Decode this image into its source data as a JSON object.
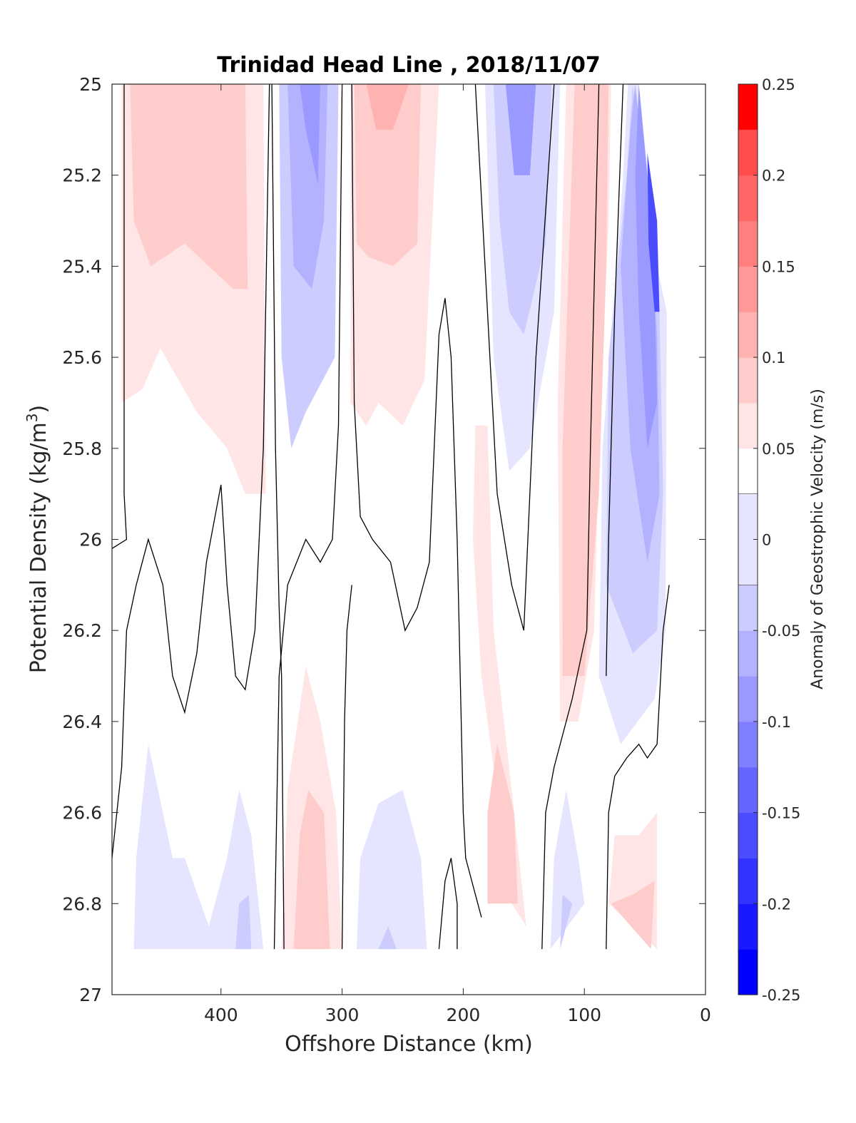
{
  "chart_data": {
    "type": "heatmap",
    "title": "Trinidad Head Line , 2018/11/07",
    "xlabel": "Offshore Distance (km)",
    "ylabel_main": "Potential Density (kg/m",
    "ylabel_sup": "3",
    "ylabel_close": ")",
    "colorbar_label": "Anomaly of Geostrophic Velocity (m/s)",
    "xlim": [
      490,
      0
    ],
    "ylim": [
      27,
      25
    ],
    "x_reversed": true,
    "y_reversed": true,
    "xticks": [
      400,
      300,
      200,
      100,
      0
    ],
    "yticks": [
      25,
      25.2,
      25.4,
      25.6,
      25.8,
      26,
      26.2,
      26.4,
      26.6,
      26.8,
      27
    ],
    "ytick_labels": [
      "25",
      "25.2",
      "25.4",
      "25.6",
      "25.8",
      "26",
      "26.2",
      "26.4",
      "26.6",
      "26.8",
      "27"
    ],
    "colorbar": {
      "min": -0.25,
      "max": 0.25,
      "ticks": [
        0.25,
        0.2,
        0.15,
        0.1,
        0.05,
        0,
        -0.05,
        -0.1,
        -0.15,
        -0.2,
        -0.25
      ],
      "tick_labels": [
        "0.25",
        "0.2",
        "0.15",
        "0.1",
        "0.05",
        "0",
        "-0.05",
        "-0.1",
        "-0.15",
        "-0.2",
        "-0.25"
      ],
      "levels": [
        -0.25,
        -0.225,
        -0.2,
        -0.175,
        -0.15,
        -0.125,
        -0.1,
        -0.075,
        -0.05,
        -0.025,
        0.025,
        0.05,
        0.075,
        0.1,
        0.125,
        0.15,
        0.175,
        0.2,
        0.225,
        0.25
      ],
      "colors": [
        "#0000ff",
        "#1919ff",
        "#3333ff",
        "#4c4cff",
        "#6666ff",
        "#7f7fff",
        "#9999ff",
        "#b2b2ff",
        "#ccccff",
        "#e5e5ff",
        "#ffffff",
        "#ffe5e5",
        "#ffcccc",
        "#ffb2b2",
        "#ff9999",
        "#ff7f7f",
        "#ff6666",
        "#ff4c4c",
        "#ff3333",
        "#ff1919"
      ]
    },
    "fills": [
      {
        "color": "#ffe5e5",
        "points": [
          [
            482,
            25
          ],
          [
            365,
            25
          ],
          [
            363,
            25.9
          ],
          [
            380,
            25.9
          ],
          [
            395,
            25.8
          ],
          [
            420,
            25.72
          ],
          [
            450,
            25.58
          ],
          [
            465,
            25.67
          ],
          [
            482,
            25.7
          ]
        ]
      },
      {
        "color": "#ffcccc",
        "points": [
          [
            475,
            25
          ],
          [
            380,
            25
          ],
          [
            378,
            25.45
          ],
          [
            390,
            25.45
          ],
          [
            430,
            25.35
          ],
          [
            458,
            25.4
          ],
          [
            472,
            25.3
          ]
        ]
      },
      {
        "color": "#ccccff",
        "points": [
          [
            352,
            25
          ],
          [
            303,
            25
          ],
          [
            306,
            25.6
          ],
          [
            330,
            25.72
          ],
          [
            342,
            25.8
          ],
          [
            350,
            25.6
          ]
        ]
      },
      {
        "color": "#b2b2ff",
        "points": [
          [
            345,
            25
          ],
          [
            312,
            25
          ],
          [
            315,
            25.3
          ],
          [
            325,
            25.45
          ],
          [
            340,
            25.4
          ]
        ]
      },
      {
        "color": "#9999ff",
        "points": [
          [
            335,
            25
          ],
          [
            318,
            25
          ],
          [
            320,
            25.22
          ],
          [
            330,
            25.1
          ]
        ]
      },
      {
        "color": "#ffe5e5",
        "points": [
          [
            293,
            25
          ],
          [
            220,
            25
          ],
          [
            232,
            25.65
          ],
          [
            250,
            25.75
          ],
          [
            270,
            25.7
          ],
          [
            280,
            25.75
          ],
          [
            293,
            25.7
          ]
        ]
      },
      {
        "color": "#ffcccc",
        "points": [
          [
            290,
            25
          ],
          [
            235,
            25
          ],
          [
            238,
            25.35
          ],
          [
            258,
            25.4
          ],
          [
            278,
            25.38
          ],
          [
            288,
            25.35
          ]
        ]
      },
      {
        "color": "#ffb2b2",
        "points": [
          [
            280,
            25
          ],
          [
            245,
            25
          ],
          [
            258,
            25.1
          ],
          [
            272,
            25.1
          ]
        ]
      },
      {
        "color": "#e5e5ff",
        "points": [
          [
            182,
            25
          ],
          [
            120,
            25
          ],
          [
            125,
            25.5
          ],
          [
            145,
            25.8
          ],
          [
            162,
            25.85
          ],
          [
            175,
            25.6
          ]
        ]
      },
      {
        "color": "#ccccff",
        "points": [
          [
            175,
            25
          ],
          [
            127,
            25
          ],
          [
            132,
            25.35
          ],
          [
            150,
            25.55
          ],
          [
            162,
            25.5
          ],
          [
            170,
            25.3
          ]
        ]
      },
      {
        "color": "#9999ff",
        "points": [
          [
            165,
            25
          ],
          [
            140,
            25
          ],
          [
            145,
            25.2
          ],
          [
            158,
            25.2
          ]
        ]
      },
      {
        "color": "#ffe5e5",
        "points": [
          [
            115,
            25
          ],
          [
            78,
            25
          ],
          [
            80,
            25.3
          ],
          [
            88,
            25.8
          ],
          [
            92,
            26.2
          ],
          [
            105,
            26.4
          ],
          [
            120,
            26.4
          ],
          [
            122,
            25.7
          ]
        ]
      },
      {
        "color": "#ffcccc",
        "points": [
          [
            108,
            25
          ],
          [
            80,
            25
          ],
          [
            82,
            25.4
          ],
          [
            88,
            25.9
          ],
          [
            100,
            26.3
          ],
          [
            118,
            26.3
          ],
          [
            118,
            25.8
          ]
        ]
      },
      {
        "color": "#ffe5e5",
        "points": [
          [
            190,
            25.75
          ],
          [
            180,
            25.75
          ],
          [
            175,
            26.2
          ],
          [
            160,
            26.55
          ],
          [
            148,
            26.85
          ],
          [
            160,
            26.8
          ],
          [
            185,
            26.3
          ],
          [
            192,
            26.0
          ]
        ]
      },
      {
        "color": "#e5e5ff",
        "points": [
          [
            64,
            25
          ],
          [
            55,
            25.0
          ],
          [
            40,
            25.4
          ],
          [
            32,
            25.5
          ],
          [
            33,
            26.2
          ],
          [
            42,
            26.35
          ],
          [
            70,
            26.45
          ],
          [
            88,
            26.3
          ],
          [
            85,
            25.8
          ],
          [
            68,
            25.2
          ]
        ]
      },
      {
        "color": "#ccccff",
        "points": [
          [
            60,
            25
          ],
          [
            52,
            25.2
          ],
          [
            38,
            25.5
          ],
          [
            35,
            25.9
          ],
          [
            40,
            26.2
          ],
          [
            60,
            26.25
          ],
          [
            82,
            26.1
          ],
          [
            80,
            25.6
          ],
          [
            65,
            25.2
          ]
        ]
      },
      {
        "color": "#b2b2ff",
        "points": [
          [
            58,
            25
          ],
          [
            50,
            25.2
          ],
          [
            40,
            25.55
          ],
          [
            38,
            25.9
          ],
          [
            48,
            26.05
          ],
          [
            62,
            25.8
          ],
          [
            70,
            25.4
          ],
          [
            62,
            25.1
          ]
        ]
      },
      {
        "color": "#9999ff",
        "points": [
          [
            55,
            25
          ],
          [
            48,
            25.2
          ],
          [
            42,
            25.45
          ],
          [
            40,
            25.7
          ],
          [
            48,
            25.8
          ],
          [
            55,
            25.5
          ],
          [
            58,
            25.2
          ]
        ]
      },
      {
        "color": "#4c4cff",
        "points": [
          [
            48,
            25.15
          ],
          [
            40,
            25.3
          ],
          [
            38,
            25.5
          ],
          [
            42,
            25.5
          ],
          [
            47,
            25.35
          ]
        ]
      },
      {
        "color": "#e5e5ff",
        "points": [
          [
            472,
            26.9
          ],
          [
            365,
            26.9
          ],
          [
            375,
            26.65
          ],
          [
            385,
            26.55
          ],
          [
            395,
            26.7
          ],
          [
            410,
            26.85
          ],
          [
            430,
            26.7
          ],
          [
            440,
            26.7
          ],
          [
            460,
            26.45
          ],
          [
            470,
            26.7
          ]
        ]
      },
      {
        "color": "#ccccff",
        "points": [
          [
            388,
            26.9
          ],
          [
            375,
            26.9
          ],
          [
            377,
            26.78
          ],
          [
            385,
            26.8
          ]
        ]
      },
      {
        "color": "#ffe5e5",
        "points": [
          [
            350,
            26.9
          ],
          [
            300,
            26.9
          ],
          [
            305,
            26.6
          ],
          [
            318,
            26.4
          ],
          [
            330,
            26.28
          ],
          [
            345,
            26.55
          ]
        ]
      },
      {
        "color": "#ffcccc",
        "points": [
          [
            340,
            26.9
          ],
          [
            310,
            26.9
          ],
          [
            315,
            26.6
          ],
          [
            328,
            26.55
          ],
          [
            335,
            26.65
          ]
        ]
      },
      {
        "color": "#e5e5ff",
        "points": [
          [
            288,
            26.9
          ],
          [
            230,
            26.9
          ],
          [
            235,
            26.7
          ],
          [
            250,
            26.55
          ],
          [
            270,
            26.58
          ],
          [
            285,
            26.7
          ]
        ]
      },
      {
        "color": "#ccccff",
        "points": [
          [
            270,
            26.9
          ],
          [
            255,
            26.9
          ],
          [
            262,
            26.85
          ]
        ]
      },
      {
        "color": "#ffcccc",
        "points": [
          [
            180,
            26.8
          ],
          [
            155,
            26.8
          ],
          [
            158,
            26.6
          ],
          [
            172,
            26.45
          ],
          [
            180,
            26.6
          ]
        ]
      },
      {
        "color": "#e5e5ff",
        "points": [
          [
            128,
            26.9
          ],
          [
            100,
            26.8
          ],
          [
            105,
            26.7
          ],
          [
            115,
            26.55
          ],
          [
            125,
            26.7
          ]
        ]
      },
      {
        "color": "#ccccff",
        "points": [
          [
            120,
            26.9
          ],
          [
            110,
            26.8
          ],
          [
            118,
            26.78
          ]
        ]
      },
      {
        "color": "#ffe5e5",
        "points": [
          [
            80,
            26.8
          ],
          [
            40,
            26.9
          ],
          [
            40,
            26.6
          ],
          [
            55,
            26.65
          ],
          [
            75,
            26.65
          ]
        ]
      },
      {
        "color": "#ffcccc",
        "points": [
          [
            78,
            26.8
          ],
          [
            45,
            26.9
          ],
          [
            42,
            26.75
          ],
          [
            60,
            26.78
          ]
        ]
      }
    ],
    "contours_zero": [
      [
        [
          480,
          25
        ],
        [
          480,
          25.9
        ],
        [
          478,
          26.0
        ],
        [
          490,
          26.02
        ]
      ],
      [
        [
          490,
          26.7
        ],
        [
          482,
          26.5
        ],
        [
          478,
          26.2
        ],
        [
          470,
          26.1
        ],
        [
          460,
          26.0
        ],
        [
          448,
          26.1
        ],
        [
          440,
          26.3
        ],
        [
          430,
          26.38
        ],
        [
          420,
          26.25
        ],
        [
          412,
          26.05
        ],
        [
          400,
          25.88
        ],
        [
          395,
          26.1
        ],
        [
          388,
          26.3
        ],
        [
          380,
          26.33
        ],
        [
          372,
          26.2
        ],
        [
          365,
          25.8
        ],
        [
          360,
          25.0
        ]
      ],
      [
        [
          358,
          25
        ],
        [
          355,
          25.8
        ],
        [
          352,
          26.15
        ],
        [
          350,
          26.3
        ],
        [
          348,
          26.9
        ]
      ],
      [
        [
          300,
          25
        ],
        [
          303,
          25.75
        ],
        [
          308,
          26.0
        ],
        [
          318,
          26.05
        ],
        [
          330,
          26.0
        ],
        [
          345,
          26.1
        ],
        [
          352,
          26.3
        ],
        [
          356,
          26.9
        ]
      ],
      [
        [
          292,
          25
        ],
        [
          290,
          25.7
        ],
        [
          285,
          25.95
        ],
        [
          275,
          26.0
        ],
        [
          260,
          26.05
        ],
        [
          248,
          26.2
        ],
        [
          238,
          26.15
        ],
        [
          228,
          26.05
        ],
        [
          220,
          25.55
        ],
        [
          215,
          25.47
        ],
        [
          210,
          25.6
        ],
        [
          205,
          26.0
        ],
        [
          200,
          26.6
        ],
        [
          198,
          26.7
        ],
        [
          185,
          26.83
        ]
      ],
      [
        [
          300,
          26.9
        ],
        [
          298,
          26.4
        ],
        [
          296,
          26.2
        ],
        [
          292,
          26.1
        ]
      ],
      [
        [
          220,
          26.9
        ],
        [
          215,
          26.75
        ],
        [
          210,
          26.7
        ],
        [
          205,
          26.8
        ],
        [
          205,
          26.9
        ]
      ],
      [
        [
          190,
          25
        ],
        [
          180,
          25.5
        ],
        [
          172,
          25.9
        ],
        [
          160,
          26.1
        ],
        [
          150,
          26.2
        ],
        [
          140,
          25.6
        ],
        [
          125,
          25.0
        ]
      ],
      [
        [
          135,
          26.9
        ],
        [
          132,
          26.6
        ],
        [
          125,
          26.5
        ],
        [
          110,
          26.35
        ],
        [
          98,
          26.2
        ],
        [
          95,
          25.8
        ],
        [
          88,
          25.0
        ]
      ],
      [
        [
          82,
          26.9
        ],
        [
          80,
          26.6
        ],
        [
          75,
          26.52
        ],
        [
          65,
          26.48
        ],
        [
          55,
          26.45
        ],
        [
          48,
          26.48
        ],
        [
          40,
          26.45
        ],
        [
          35,
          26.2
        ],
        [
          30,
          26.1
        ]
      ],
      [
        [
          68,
          25
        ],
        [
          75,
          25.5
        ],
        [
          80,
          26.0
        ],
        [
          82,
          26.3
        ]
      ]
    ]
  }
}
